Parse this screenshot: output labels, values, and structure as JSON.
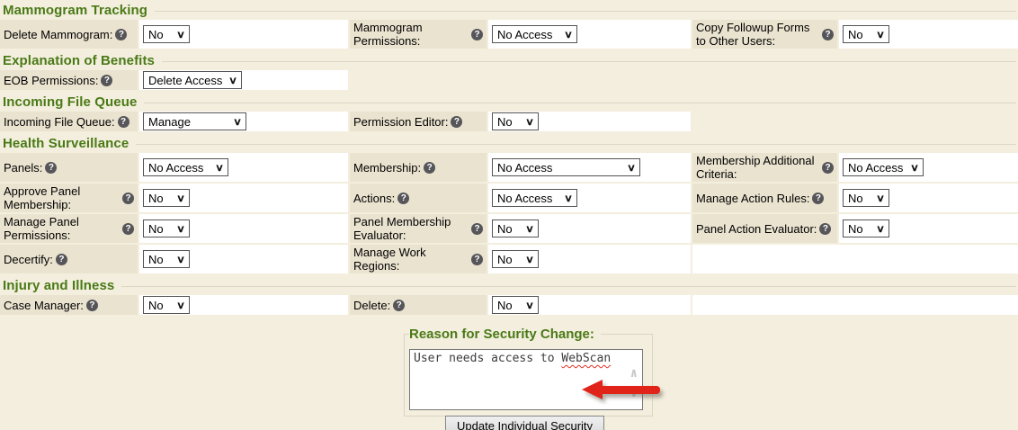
{
  "colors": {
    "section_green": "#4a7a17",
    "label_bg": "#eae3d0",
    "page_bg": "#f3eedd",
    "arrow_red": "#e0241a"
  },
  "icons": {
    "help": "?",
    "select_chevron": "∨",
    "scroll_up": "∧",
    "scroll_down": "∨"
  },
  "sections": [
    {
      "title": "Mammogram Tracking",
      "rows": [
        {
          "cells": [
            {
              "label": "Delete Mammogram:",
              "value": "No"
            },
            {
              "label": "Mammogram Permissions:",
              "value": "No Access"
            },
            {
              "label": "Copy Followup Forms to Other Users:",
              "value": "No"
            }
          ]
        }
      ]
    },
    {
      "title": "Explanation of Benefits",
      "rows": [
        {
          "cells": [
            {
              "label": "EOB Permissions:",
              "value": "Delete Access"
            }
          ]
        }
      ]
    },
    {
      "title": "Incoming File Queue",
      "rows": [
        {
          "cells": [
            {
              "label": "Incoming File Queue:",
              "value": "Manage"
            },
            {
              "label": "Permission Editor:",
              "value": "No"
            }
          ]
        }
      ]
    },
    {
      "title": "Health Surveillance",
      "rows": [
        {
          "cells": [
            {
              "label": "Panels:",
              "value": "No Access"
            },
            {
              "label": "Membership:",
              "value": "No Access"
            },
            {
              "label": "Membership Additional Criteria:",
              "value": "No Access"
            }
          ]
        },
        {
          "cells": [
            {
              "label": "Approve Panel Membership:",
              "value": "No"
            },
            {
              "label": "Actions:",
              "value": "No Access"
            },
            {
              "label": "Manage Action Rules:",
              "value": "No"
            }
          ]
        },
        {
          "cells": [
            {
              "label": "Manage Panel Permissions:",
              "value": "No"
            },
            {
              "label": "Panel Membership Evaluator:",
              "value": "No"
            },
            {
              "label": "Panel Action Evaluator:",
              "value": "No"
            }
          ]
        },
        {
          "cells": [
            {
              "label": "Decertify:",
              "value": "No"
            },
            {
              "label": "Manage Work Regions:",
              "value": "No"
            }
          ]
        }
      ]
    },
    {
      "title": "Injury and Illness",
      "rows": [
        {
          "cells": [
            {
              "label": "Case Manager:",
              "value": "No"
            },
            {
              "label": "Delete:",
              "value": "No"
            }
          ]
        }
      ]
    }
  ],
  "footer": {
    "heading": "Reason for Security Change:",
    "reason_text_prefix": "User needs access to ",
    "reason_text_flagged": "WebScan",
    "button_label": "Update Individual Security"
  }
}
